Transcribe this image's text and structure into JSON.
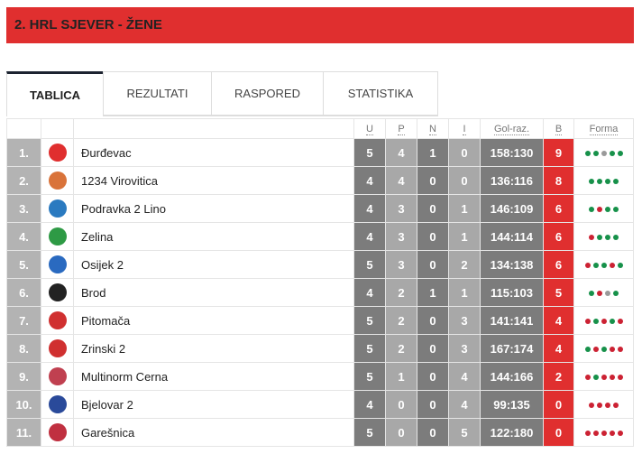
{
  "title": "2. HRL SJEVER - ŽENE",
  "tabs": [
    {
      "label": "TABLICA",
      "active": true
    },
    {
      "label": "REZULTATI"
    },
    {
      "label": "RASPORED"
    },
    {
      "label": "STATISTIKA"
    }
  ],
  "headers": {
    "u": "U",
    "p": "P",
    "n": "N",
    "i": "I",
    "gol": "Gol-raz.",
    "b": "B",
    "forma": "Forma"
  },
  "colors": {
    "win": "#17914a",
    "loss": "#cc2233",
    "draw": "#9a9a9a",
    "accent": "#e02f2f"
  },
  "rows": [
    {
      "rank": "1.",
      "team": "Đurđevac",
      "u": "5",
      "p": "4",
      "n": "1",
      "i": "0",
      "gol": "158:130",
      "b": "9",
      "forma": [
        "W",
        "W",
        "D",
        "W",
        "W"
      ],
      "logo": "#e02f2f"
    },
    {
      "rank": "2.",
      "team": "1234 Virovitica",
      "u": "4",
      "p": "4",
      "n": "0",
      "i": "0",
      "gol": "136:116",
      "b": "8",
      "forma": [
        "W",
        "W",
        "W",
        "W"
      ],
      "logo": "#d9733a"
    },
    {
      "rank": "3.",
      "team": "Podravka 2 Lino",
      "u": "4",
      "p": "3",
      "n": "0",
      "i": "1",
      "gol": "146:109",
      "b": "6",
      "forma": [
        "W",
        "L",
        "W",
        "W"
      ],
      "logo": "#2a7ac0"
    },
    {
      "rank": "4.",
      "team": "Zelina",
      "u": "4",
      "p": "3",
      "n": "0",
      "i": "1",
      "gol": "144:114",
      "b": "6",
      "forma": [
        "L",
        "W",
        "W",
        "W"
      ],
      "logo": "#2e9a45"
    },
    {
      "rank": "5.",
      "team": "Osijek 2",
      "u": "5",
      "p": "3",
      "n": "0",
      "i": "2",
      "gol": "134:138",
      "b": "6",
      "forma": [
        "L",
        "W",
        "W",
        "L",
        "W"
      ],
      "logo": "#2a6ac0"
    },
    {
      "rank": "6.",
      "team": "Brod",
      "u": "4",
      "p": "2",
      "n": "1",
      "i": "1",
      "gol": "115:103",
      "b": "5",
      "forma": [
        "W",
        "L",
        "D",
        "W"
      ],
      "logo": "#222222"
    },
    {
      "rank": "7.",
      "team": "Pitomača",
      "u": "5",
      "p": "2",
      "n": "0",
      "i": "3",
      "gol": "141:141",
      "b": "4",
      "forma": [
        "L",
        "W",
        "L",
        "W",
        "L"
      ],
      "logo": "#d03030"
    },
    {
      "rank": "8.",
      "team": "Zrinski 2",
      "u": "5",
      "p": "2",
      "n": "0",
      "i": "3",
      "gol": "167:174",
      "b": "4",
      "forma": [
        "W",
        "L",
        "W",
        "L",
        "L"
      ],
      "logo": "#d03030"
    },
    {
      "rank": "9.",
      "team": "Multinorm Cerna",
      "u": "5",
      "p": "1",
      "n": "0",
      "i": "4",
      "gol": "144:166",
      "b": "2",
      "forma": [
        "L",
        "W",
        "L",
        "L",
        "L"
      ],
      "logo": "#c04050"
    },
    {
      "rank": "10.",
      "team": "Bjelovar 2",
      "u": "4",
      "p": "0",
      "n": "0",
      "i": "4",
      "gol": "99:135",
      "b": "0",
      "forma": [
        "L",
        "L",
        "L",
        "L"
      ],
      "logo": "#2a4a9a"
    },
    {
      "rank": "11.",
      "team": "Garešnica",
      "u": "5",
      "p": "0",
      "n": "0",
      "i": "5",
      "gol": "122:180",
      "b": "0",
      "forma": [
        "L",
        "L",
        "L",
        "L",
        "L"
      ],
      "logo": "#c03040"
    }
  ]
}
